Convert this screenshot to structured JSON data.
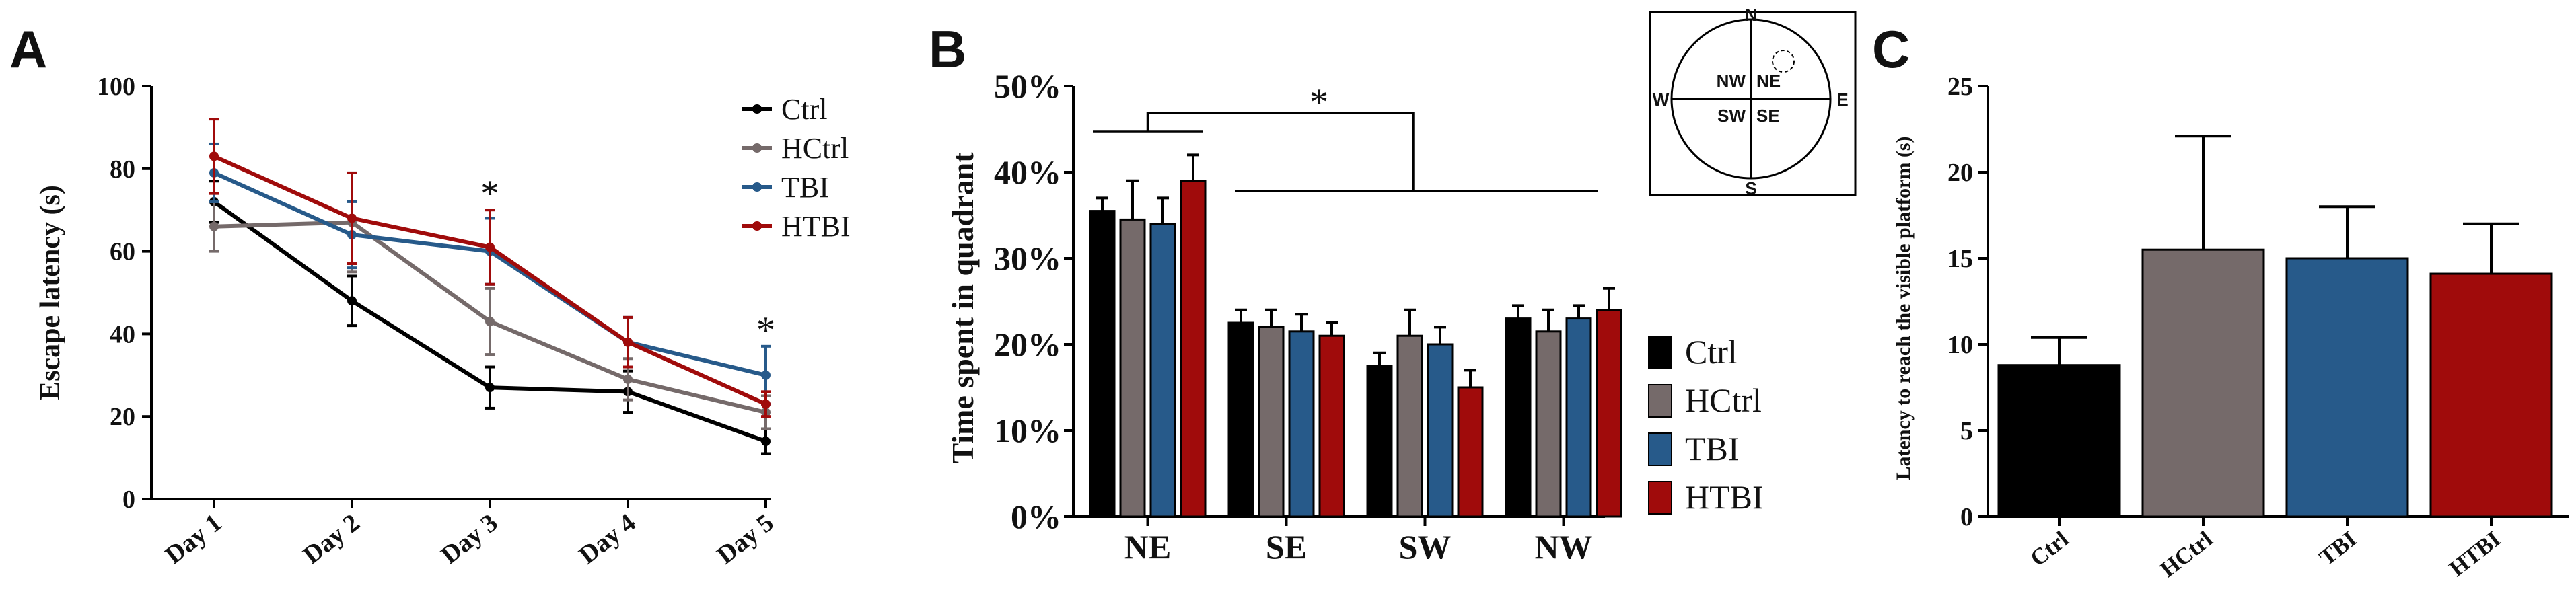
{
  "figure": {
    "panels": [
      {
        "letter": "A"
      },
      {
        "letter": "B"
      },
      {
        "letter": "C"
      }
    ]
  },
  "colors": {
    "Ctrl": "#000000",
    "HCtrl": "#756a6a",
    "TBI": "#275a8a",
    "HTBI": "#a00b0b"
  },
  "chart_data": [
    {
      "panel": "A",
      "type": "line",
      "xlabel": "",
      "ylabel": "Escape latency (s)",
      "categories": [
        "Day 1",
        "Day 2",
        "Day 3",
        "Day 4",
        "Day 5"
      ],
      "ylim": [
        0,
        100
      ],
      "yticks": [
        "0",
        "20",
        "40",
        "60",
        "80",
        "100"
      ],
      "series": [
        {
          "name": "Ctrl",
          "values": [
            72,
            48,
            27,
            26,
            14
          ],
          "errors": [
            5,
            6,
            5,
            5,
            3
          ]
        },
        {
          "name": "HCtrl",
          "values": [
            66,
            67,
            43,
            29,
            21
          ],
          "errors": [
            6,
            12,
            8,
            5,
            4
          ]
        },
        {
          "name": "TBI",
          "values": [
            79,
            64,
            60,
            38,
            30
          ],
          "errors": [
            7,
            8,
            8,
            6,
            7
          ]
        },
        {
          "name": "HTBI",
          "values": [
            83,
            68,
            61,
            38,
            23
          ],
          "errors": [
            9,
            11,
            9,
            6,
            3
          ]
        }
      ],
      "annotations": [
        {
          "category": "Day 3",
          "text": "*"
        },
        {
          "category": "Day 5",
          "text": "*"
        }
      ],
      "legend": "top-right"
    },
    {
      "panel": "B",
      "type": "bar",
      "ylabel": "Time spent in quadrant",
      "categories": [
        "NE",
        "SE",
        "SW",
        "NW"
      ],
      "ylim": [
        0,
        50
      ],
      "yticks": [
        "0%",
        "10%",
        "20%",
        "30%",
        "40%",
        "50%"
      ],
      "series": [
        {
          "name": "Ctrl",
          "values": [
            35.5,
            22.5,
            17.5,
            23.0
          ],
          "errors": [
            1.5,
            1.5,
            1.5,
            1.5
          ]
        },
        {
          "name": "HCtrl",
          "values": [
            34.5,
            22.0,
            21.0,
            21.5
          ],
          "errors": [
            4.5,
            2.0,
            3.0,
            2.5
          ]
        },
        {
          "name": "TBI",
          "values": [
            34.0,
            21.5,
            20.0,
            23.0
          ],
          "errors": [
            3.0,
            2.0,
            2.0,
            1.5
          ]
        },
        {
          "name": "HTBI",
          "values": [
            39.0,
            21.0,
            15.0,
            24.0
          ],
          "errors": [
            3.0,
            1.5,
            2.0,
            2.5
          ]
        }
      ],
      "annotations": [
        {
          "text": "*"
        }
      ],
      "legend": "right",
      "inset": {
        "directions": [
          "N",
          "E",
          "S",
          "W"
        ],
        "quadrants": [
          "NW",
          "NE",
          "SW",
          "SE"
        ]
      }
    },
    {
      "panel": "C",
      "type": "bar",
      "ylabel": "Latency to reach the visible platform (s)",
      "categories": [
        "Ctrl",
        "HCtrl",
        "TBI",
        "HTBI"
      ],
      "ylim": [
        0,
        25
      ],
      "yticks": [
        "0",
        "5",
        "10",
        "15",
        "20",
        "25"
      ],
      "values": [
        8.8,
        15.5,
        15.0,
        14.1
      ],
      "errors": [
        1.6,
        6.6,
        3.0,
        2.9
      ]
    }
  ]
}
